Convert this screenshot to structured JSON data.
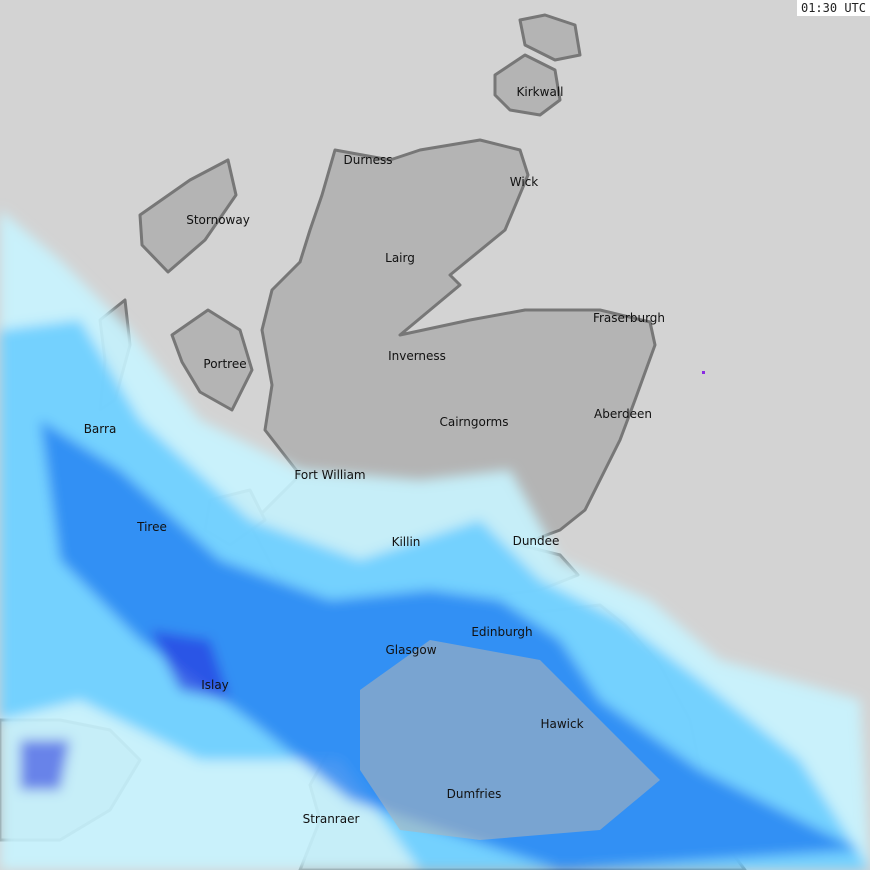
{
  "timestamp": "01:30 UTC",
  "colors": {
    "sea": "#d3d3d3",
    "land": "#b4b4b4",
    "coast": "#7a7a7a",
    "rain_light": "#c8f4ff",
    "rain_mid": "#66ccff",
    "rain_heavy": "#1e7bf0",
    "rain_very_heavy": "#2a3ce0"
  },
  "places": [
    "Kirkwall",
    "Durness",
    "Wick",
    "Stornoway",
    "Lairg",
    "Fraserburgh",
    "Portree",
    "Inverness",
    "Barra",
    "Cairngorms",
    "Aberdeen",
    "Fort William",
    "Tiree",
    "Killin",
    "Dundee",
    "Edinburgh",
    "Glasgow",
    "Islay",
    "Hawick",
    "Dumfries",
    "Stranraer"
  ]
}
